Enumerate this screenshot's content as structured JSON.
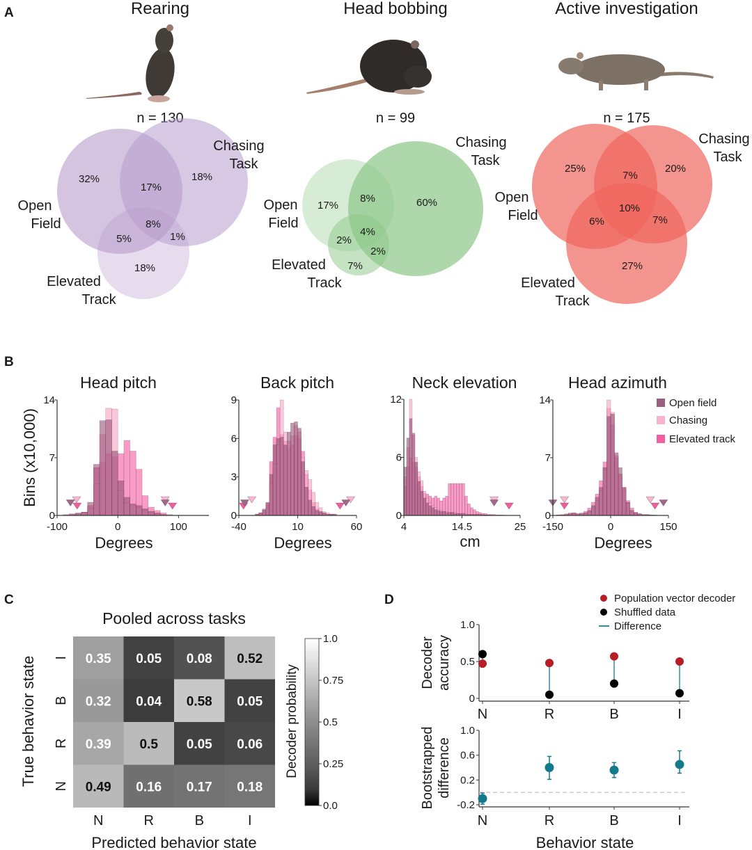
{
  "panels": {
    "a": "A",
    "b": "B",
    "c": "C",
    "d": "D"
  },
  "venn": [
    {
      "title": "Rearing",
      "n_label": "n = 130",
      "color": "#b79ccc",
      "set_labels": {
        "chasing": [
          "Chasing",
          "Task"
        ],
        "open_field": [
          "Open",
          "Field"
        ],
        "elevated": [
          "Elevated",
          "Track"
        ]
      },
      "regions": {
        "open_only": "32%",
        "open_chasing": "17%",
        "chasing_only": "18%",
        "all": "8%",
        "open_elevated": "5%",
        "chasing_elevated": "1%",
        "elevated_only": "18%"
      }
    },
    {
      "title": "Head bobbing",
      "n_label": "n = 99",
      "color": "#8cc887",
      "set_labels": {
        "chasing": [
          "Chasing",
          "Task"
        ],
        "open_field": [
          "Open",
          "Field"
        ],
        "elevated": [
          "Elevated",
          "Track"
        ]
      },
      "regions": {
        "open_only": "17%",
        "open_chasing": "8%",
        "chasing_only": "60%",
        "all": "4%",
        "open_elevated": "2%",
        "chasing_elevated": "2%",
        "elevated_only": "7%"
      }
    },
    {
      "title": "Active investigation",
      "n_label": "n = 175",
      "color": "#f0665e",
      "set_labels": {
        "chasing": [
          "Chasing",
          "Task"
        ],
        "open_field": [
          "Open",
          "Field"
        ],
        "elevated": [
          "Elevated",
          "Track"
        ]
      },
      "regions": {
        "open_only": "25%",
        "open_chasing": "7%",
        "chasing_only": "20%",
        "all": "10%",
        "open_elevated": "6%",
        "chasing_elevated": "7%",
        "elevated_only": "27%"
      }
    }
  ],
  "histogram_legend": {
    "items": [
      {
        "label": "Open field",
        "color": "#9c5f80"
      },
      {
        "label": "Chasing",
        "color": "#f7b4cc"
      },
      {
        "label": "Elevated track",
        "color": "#f2609f"
      }
    ],
    "y_label": "Bins (x10,000)"
  },
  "chart_data": [
    {
      "type": "bar",
      "title": "Head pitch",
      "xlabel": "Degrees",
      "ylabel": "Bins (x10,000)",
      "xlim": [
        -100,
        150
      ],
      "ylim": [
        0,
        14
      ],
      "xticks": [
        "-100",
        "0",
        "100"
      ],
      "xtick_values": [
        -100,
        0,
        100
      ],
      "yticks": [
        "0",
        "7",
        "14"
      ],
      "ytick_values": [
        0,
        7,
        14
      ],
      "bin_start": -90,
      "bin_width": 10,
      "series": [
        {
          "name": "Elevated track",
          "values": [
            0,
            0.1,
            0.2,
            0.4,
            1.2,
            5.8,
            6.5,
            7.5,
            7.1,
            7.5,
            9.1,
            7.8,
            5.6,
            2.4,
            1.0,
            0.6,
            0.3,
            0.1
          ],
          "markers": [
            -67,
            90
          ]
        },
        {
          "name": "Chasing",
          "values": [
            0,
            0,
            0.2,
            0.3,
            0.8,
            3.8,
            9.8,
            13.0,
            12.9,
            3.0,
            1.5,
            1.2,
            1.0,
            0.6,
            0.4,
            0.2,
            0.1,
            0
          ],
          "markers": [
            -68,
            78
          ]
        },
        {
          "name": "Open field",
          "values": [
            0.1,
            0.2,
            0.3,
            0.4,
            1.6,
            6.2,
            11.5,
            11.6,
            7.8,
            4.2,
            2.2,
            1.4,
            1.2,
            0.8,
            0.5,
            0.3,
            0.1,
            0
          ],
          "markers": [
            -78,
            78
          ]
        }
      ]
    },
    {
      "type": "bar",
      "title": "Back pitch",
      "xlabel": "Degrees",
      "xlim": [
        -40,
        60
      ],
      "ylim": [
        0,
        9
      ],
      "xticks": [
        "-40",
        "10",
        "60"
      ],
      "xtick_values": [
        -40,
        10,
        60
      ],
      "yticks": [
        "0",
        "3",
        "6",
        "9"
      ],
      "ytick_values": [
        0,
        3,
        6,
        9
      ],
      "bin_start": -26,
      "bin_width": 3,
      "series": [
        {
          "name": "Elevated track",
          "values": [
            0.1,
            0.2,
            0.4,
            1.0,
            4.2,
            6.1,
            8.4,
            6.3,
            5.8,
            5.2,
            5.5,
            6.2,
            6.0,
            5.0,
            3.2,
            2.0,
            1.0,
            0.5,
            0.3,
            0.2,
            0.1,
            0.1,
            0,
            0,
            0
          ],
          "markers": [
            -36,
            46
          ]
        },
        {
          "name": "Chasing",
          "values": [
            0.1,
            0.2,
            0.4,
            0.6,
            2.5,
            4.0,
            5.5,
            9.0,
            6.5,
            5.8,
            6.2,
            7.0,
            6.5,
            4.5,
            3.5,
            2.8,
            1.8,
            1.0,
            0.6,
            0.3,
            0.2,
            0.1,
            0.1,
            0,
            0
          ],
          "markers": [
            -29,
            55
          ]
        },
        {
          "name": "Open field",
          "values": [
            0.1,
            0.2,
            0.5,
            1.0,
            3.2,
            5.5,
            6.0,
            6.1,
            5.5,
            6.5,
            7.2,
            7.3,
            6.8,
            4.2,
            2.2,
            1.2,
            0.7,
            0.4,
            0.3,
            0.2,
            0.1,
            0.1,
            0.1,
            0,
            0
          ],
          "markers": [
            -35,
            51
          ]
        }
      ]
    },
    {
      "type": "bar",
      "title": "Neck elevation",
      "xlabel": "cm",
      "xlim": [
        4,
        25
      ],
      "ylim": [
        0,
        12
      ],
      "xticks": [
        "4",
        "14.5",
        "25"
      ],
      "xtick_values": [
        4,
        14.5,
        25
      ],
      "yticks": [
        "0",
        "6",
        "12"
      ],
      "ytick_values": [
        0,
        6,
        12
      ],
      "bin_start": 4.0,
      "bin_width": 0.5,
      "series": [
        {
          "name": "Elevated track",
          "values": [
            3,
            5,
            6,
            5.5,
            5,
            4,
            3,
            2.3,
            2.2,
            2,
            1.8,
            2.0,
            1.8,
            1.5,
            1.8,
            2,
            3.3,
            3.3,
            3.3,
            3.3,
            3.3,
            3.3,
            2,
            1.2,
            0.8,
            0.6,
            0.4,
            0.3,
            0.2,
            0.2,
            0.1,
            0.1,
            0.1,
            0.05,
            0.05,
            0.05
          ],
          "markers": [
            23
          ]
        },
        {
          "name": "Chasing",
          "values": [
            4,
            7,
            12,
            8.3,
            6,
            4.5,
            3.6,
            2.5,
            1.8,
            1.3,
            1.0,
            0.8,
            0.6,
            0.5,
            0.4,
            0.4,
            0.3,
            0.3,
            0.3,
            0.2,
            0.2,
            0.2,
            0.2,
            0.1,
            0.1,
            0.1,
            0.1,
            0.1,
            0.1,
            0.05,
            0.05,
            0.05,
            0,
            0,
            0,
            0
          ],
          "markers": [
            20.3
          ]
        },
        {
          "name": "Open field",
          "values": [
            5,
            8,
            10,
            8.5,
            5.5,
            3.5,
            2.5,
            1.8,
            1.3,
            1.0,
            0.8,
            0.6,
            0.5,
            0.4,
            0.4,
            0.3,
            0.3,
            0.3,
            0.2,
            0.2,
            0.2,
            0.2,
            0.1,
            0.1,
            0.1,
            0.1,
            0.1,
            0.1,
            0.05,
            0.05,
            0.05,
            0,
            0,
            0,
            0,
            0
          ],
          "markers": [
            20.3
          ]
        }
      ]
    },
    {
      "type": "bar",
      "title": "Head azimuth",
      "xlabel": "Degrees",
      "xlim": [
        -150,
        150
      ],
      "ylim": [
        0,
        14
      ],
      "xticks": [
        "-150",
        "0",
        "150"
      ],
      "xtick_values": [
        -150,
        0,
        150
      ],
      "yticks": [
        "0",
        "7",
        "14"
      ],
      "ytick_values": [
        0,
        7,
        14
      ],
      "bin_start": -140,
      "bin_width": 10,
      "legend": "top-right",
      "series": [
        {
          "name": "Elevated track",
          "values": [
            0.05,
            0.1,
            0.2,
            0.3,
            0.3,
            0.2,
            0.3,
            0.5,
            0.9,
            1.6,
            2.6,
            4.2,
            6.5,
            13,
            11,
            7,
            5,
            3.4,
            1.8,
            0.9,
            0.4,
            0.2,
            0.1,
            0.1,
            0.05,
            0,
            0,
            0
          ],
          "markers": [
            -120,
            115
          ]
        },
        {
          "name": "Chasing",
          "values": [
            0.05,
            0.05,
            0.1,
            0.2,
            0.3,
            0.2,
            0.2,
            0.3,
            0.5,
            1.0,
            1.8,
            3.0,
            5.5,
            14,
            12.5,
            7.2,
            5.0,
            3.0,
            1.5,
            0.6,
            0.3,
            0.2,
            0.1,
            0.1,
            0.05,
            0,
            0,
            0
          ],
          "markers": [
            -120,
            103
          ]
        },
        {
          "name": "Open field",
          "values": [
            0.05,
            0.05,
            0.1,
            0.2,
            0.3,
            0.2,
            0.2,
            0.3,
            0.6,
            1.2,
            2.2,
            3.4,
            5.8,
            12,
            12.3,
            7.6,
            5.8,
            3.4,
            1.6,
            0.6,
            0.3,
            0.2,
            0.1,
            0.1,
            0.05,
            0.05,
            0,
            0
          ],
          "markers": [
            -150,
            137
          ]
        }
      ]
    },
    {
      "type": "heatmap",
      "title": "Pooled across tasks",
      "xlabel": "Predicted behavior state",
      "ylabel": "True behavior state",
      "col_labels": [
        "N",
        "R",
        "B",
        "I"
      ],
      "row_labels": [
        "I",
        "B",
        "R",
        "N"
      ],
      "values": [
        [
          0.35,
          0.05,
          0.08,
          0.52
        ],
        [
          0.32,
          0.04,
          0.58,
          0.05
        ],
        [
          0.39,
          0.5,
          0.05,
          0.06
        ],
        [
          0.49,
          0.16,
          0.17,
          0.18
        ]
      ],
      "colorbar": {
        "label": "Decoder probability",
        "ticks": [
          "1.0",
          "0.75",
          "0.5",
          "0.25",
          "0.0"
        ],
        "tick_values": [
          1.0,
          0.75,
          0.5,
          0.25,
          0.0
        ],
        "range": [
          0,
          1
        ],
        "colormap": "gray"
      }
    },
    {
      "type": "scatter",
      "ylabel": [
        "Decoder",
        "accuracy"
      ],
      "categories": [
        "N",
        "R",
        "B",
        "I"
      ],
      "ylim": [
        0,
        1.0
      ],
      "yticks": [
        "0",
        "0.5",
        "1.0"
      ],
      "ytick_values": [
        0,
        0.5,
        1.0
      ],
      "legend": "top-right",
      "series": [
        {
          "name": "Population vector decoder",
          "color": "#b81c25",
          "values": [
            0.47,
            0.48,
            0.57,
            0.5
          ]
        },
        {
          "name": "Shuffled data",
          "color": "#000000",
          "values": [
            0.6,
            0.05,
            0.2,
            0.07
          ]
        }
      ],
      "difference": {
        "name": "Difference",
        "color": "#2d8fa0"
      }
    },
    {
      "type": "scatter",
      "ylabel": [
        "Bootstrapped",
        "difference"
      ],
      "xlabel": "Behavior state",
      "categories": [
        "N",
        "R",
        "B",
        "I"
      ],
      "ylim": [
        -0.2,
        1.0
      ],
      "yticks": [
        "-0.2",
        "0.2",
        "0.6",
        "1.0"
      ],
      "ytick_values": [
        -0.2,
        0.2,
        0.6,
        1.0
      ],
      "reference_line": 0,
      "color": "#137a8c",
      "values": [
        -0.1,
        0.4,
        0.36,
        0.45
      ],
      "ci_low": [
        -0.19,
        0.21,
        0.24,
        0.31
      ],
      "ci_high": [
        -0.01,
        0.58,
        0.48,
        0.67
      ]
    }
  ]
}
